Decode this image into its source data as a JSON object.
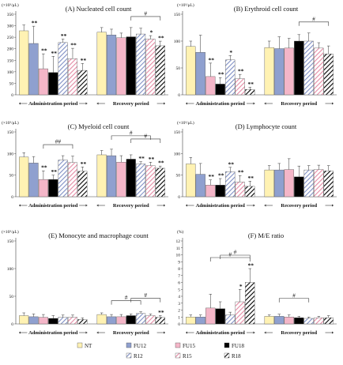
{
  "figure": {
    "legend": [
      {
        "label": "NT",
        "style": "nt"
      },
      {
        "label": "FU12",
        "style": "fu12"
      },
      {
        "label": "FU15",
        "style": "fu15"
      },
      {
        "label": "FU18",
        "style": "fu18"
      },
      {
        "label": "R12",
        "style": "r12"
      },
      {
        "label": "R15",
        "style": "r15"
      },
      {
        "label": "R18",
        "style": "r18"
      }
    ],
    "colors": {
      "nt": "#fff2b3",
      "fu12": "#8fa0cf",
      "fu15": "#f4b6c8",
      "fu18": "#000000",
      "r12_stripe": "#7f8fc4",
      "r15_stripe": "#e48aa4",
      "r18_stripe": "#000000"
    }
  },
  "chart_data": [
    {
      "type": "bar",
      "title": "(A) Nucleated cell count",
      "unit": "(×10³/μL)",
      "ylim": [
        0,
        350
      ],
      "yticks": [
        "0",
        "50",
        "100",
        "150",
        "200",
        "250",
        "300",
        "350"
      ],
      "groups": [
        {
          "label": "Administration period",
          "categories": [
            "NT",
            "FU12",
            "FU15",
            "FU18",
            "R12",
            "R15",
            "R18"
          ],
          "values": [
            278,
            223,
            113,
            97,
            227,
            157,
            106
          ],
          "errors": [
            25,
            75,
            65,
            70,
            15,
            45,
            30
          ]
        },
        {
          "label": "Recovery period",
          "categories": [
            "NT",
            "FU12",
            "FU15",
            "FU18",
            "R12",
            "R15",
            "R18"
          ],
          "values": [
            272,
            260,
            248,
            252,
            264,
            242,
            213
          ],
          "errors": [
            20,
            25,
            20,
            40,
            25,
            15,
            20
          ]
        }
      ],
      "annotations": {
        "stars": [
          [
            0,
            1,
            "**"
          ],
          [
            0,
            2,
            "**"
          ],
          [
            0,
            3,
            "**"
          ],
          [
            0,
            4,
            "**"
          ],
          [
            0,
            5,
            "**"
          ],
          [
            0,
            6,
            "**"
          ],
          [
            1,
            5,
            "*"
          ],
          [
            1,
            6,
            "**"
          ]
        ],
        "hash": [
          {
            "group": 1,
            "from": 3,
            "to": 6,
            "label": "#"
          }
        ]
      }
    },
    {
      "type": "bar",
      "title": "(B) Erythroid cell count",
      "unit": "(×10³/μL)",
      "ylim": [
        0,
        150
      ],
      "yticks": [
        "0",
        "50",
        "100",
        "150"
      ],
      "groups": [
        {
          "label": "Administration period",
          "categories": [
            "NT",
            "FU12",
            "FU15",
            "FU18",
            "R12",
            "R15",
            "R18"
          ],
          "values": [
            90,
            79,
            34,
            20,
            65,
            30,
            10
          ],
          "errors": [
            10,
            32,
            25,
            12,
            8,
            8,
            4
          ]
        },
        {
          "label": "Recovery period",
          "categories": [
            "NT",
            "FU12",
            "FU15",
            "FU18",
            "R12",
            "R15",
            "R18"
          ],
          "values": [
            88,
            86,
            87,
            100,
            100,
            87,
            76
          ],
          "errors": [
            12,
            22,
            18,
            12,
            15,
            10,
            15
          ]
        }
      ],
      "annotations": {
        "stars": [
          [
            0,
            2,
            "**"
          ],
          [
            0,
            3,
            "**"
          ],
          [
            0,
            4,
            "*"
          ],
          [
            0,
            5,
            "**"
          ],
          [
            0,
            6,
            "**"
          ]
        ],
        "hash": [
          {
            "group": 1,
            "from": 3,
            "to": 6,
            "label": "#"
          }
        ]
      }
    },
    {
      "type": "bar",
      "title": "(C) Myeloid cell count",
      "unit": "(×10³/μL)",
      "ylim": [
        0,
        150
      ],
      "yticks": [
        "0",
        "50",
        "100",
        "150"
      ],
      "groups": [
        {
          "label": "Administration period",
          "categories": [
            "NT",
            "FU12",
            "FU15",
            "FU18",
            "R12",
            "R15",
            "R18"
          ],
          "values": [
            92,
            78,
            40,
            40,
            85,
            79,
            59
          ],
          "errors": [
            10,
            15,
            20,
            10,
            10,
            15,
            10
          ]
        },
        {
          "label": "Recovery period",
          "categories": [
            "NT",
            "FU12",
            "FU15",
            "FU18",
            "R12",
            "R15",
            "R18"
          ],
          "values": [
            97,
            95,
            80,
            87,
            76,
            72,
            66
          ],
          "errors": [
            10,
            15,
            15,
            10,
            5,
            8,
            5
          ]
        }
      ],
      "annotations": {
        "stars": [
          [
            0,
            2,
            "**"
          ],
          [
            0,
            3,
            "**"
          ],
          [
            0,
            6,
            "**"
          ],
          [
            1,
            4,
            "**"
          ],
          [
            1,
            5,
            "**"
          ],
          [
            1,
            6,
            "**"
          ]
        ],
        "hash": [
          {
            "group": 0,
            "from": 2,
            "to": 5,
            "label": "##"
          },
          {
            "group": 1,
            "from": 1,
            "to": 5,
            "label": "#"
          },
          {
            "group": 1,
            "from": 3,
            "to": 6,
            "label": "#"
          }
        ]
      }
    },
    {
      "type": "bar",
      "title": "(D) Lymphocyte count",
      "unit": "(×10³/μL)",
      "ylim": [
        0,
        150
      ],
      "yticks": [
        "0",
        "50",
        "100",
        "150"
      ],
      "groups": [
        {
          "label": "Administration period",
          "categories": [
            "NT",
            "FU12",
            "FU15",
            "FU18",
            "R12",
            "R15",
            "R18"
          ],
          "values": [
            76,
            52,
            27,
            27,
            58,
            34,
            24
          ],
          "errors": [
            15,
            25,
            12,
            15,
            10,
            15,
            12
          ]
        },
        {
          "label": "Recovery period",
          "categories": [
            "NT",
            "FU12",
            "FU15",
            "FU18",
            "R12",
            "R15",
            "R18"
          ],
          "values": [
            62,
            62,
            63,
            46,
            62,
            63,
            60
          ],
          "errors": [
            10,
            15,
            25,
            25,
            10,
            10,
            12
          ]
        }
      ],
      "annotations": {
        "stars": [
          [
            0,
            2,
            "**"
          ],
          [
            0,
            3,
            "**"
          ],
          [
            0,
            4,
            "**"
          ],
          [
            0,
            5,
            "**"
          ],
          [
            0,
            6,
            "**"
          ]
        ],
        "hash": []
      }
    },
    {
      "type": "bar",
      "title": "(E) Monocyte and macrophage count",
      "unit": "(×10³/μL)",
      "ylim": [
        0,
        150
      ],
      "yticks": [
        "0",
        "50",
        "100",
        "150"
      ],
      "groups": [
        {
          "label": "Administration period",
          "categories": [
            "NT",
            "FU12",
            "FU15",
            "FU18",
            "R12",
            "R15",
            "R18"
          ],
          "values": [
            15,
            13,
            12,
            10,
            12,
            12,
            8
          ],
          "errors": [
            5,
            5,
            5,
            5,
            4,
            4,
            3
          ]
        },
        {
          "label": "Recovery period",
          "categories": [
            "NT",
            "FU12",
            "FU15",
            "FU18",
            "R12",
            "R15",
            "R18"
          ],
          "values": [
            17,
            13,
            13,
            15,
            19,
            15,
            12
          ],
          "errors": [
            3,
            4,
            4,
            3,
            3,
            3,
            3
          ]
        }
      ],
      "annotations": {
        "stars": [
          [
            1,
            6,
            "**"
          ]
        ],
        "hash": [
          {
            "group": 1,
            "from": 1,
            "to": 4,
            "label": "#"
          },
          {
            "group": 1,
            "from": 3,
            "to": 6,
            "label": "#"
          }
        ]
      }
    },
    {
      "type": "bar",
      "title": "(F) M/E ratio",
      "unit": "(%)",
      "ylim": [
        0,
        12
      ],
      "yticks": [
        "0",
        "1",
        "2",
        "3",
        "4",
        "5",
        "6",
        "7",
        "8",
        "9",
        "10",
        "11",
        "12"
      ],
      "groups": [
        {
          "label": "Administration period",
          "categories": [
            "NT",
            "FU12",
            "FU15",
            "FU18",
            "R12",
            "R15",
            "R18"
          ],
          "values": [
            1.0,
            1.0,
            2.3,
            2.2,
            1.3,
            3.2,
            6.0
          ],
          "errors": [
            0.3,
            0.3,
            2.0,
            1.0,
            0.4,
            1.8,
            2.0
          ]
        },
        {
          "label": "Recovery period",
          "categories": [
            "NT",
            "FU12",
            "FU15",
            "FU18",
            "R12",
            "R15",
            "R18"
          ],
          "values": [
            1.1,
            1.1,
            1.0,
            0.9,
            0.8,
            0.9,
            0.9
          ],
          "errors": [
            0.2,
            0.3,
            0.3,
            0.2,
            0.2,
            0.2,
            0.3
          ]
        }
      ],
      "annotations": {
        "stars": [
          [
            0,
            5,
            "*"
          ],
          [
            0,
            6,
            "**"
          ]
        ],
        "hash": [
          {
            "group": 0,
            "from": 2,
            "to": 6,
            "label": "#"
          },
          {
            "group": 0,
            "from": 3,
            "to": 6,
            "label": "#"
          },
          {
            "group": 1,
            "from": 1,
            "to": 4,
            "label": "#"
          }
        ]
      }
    }
  ]
}
